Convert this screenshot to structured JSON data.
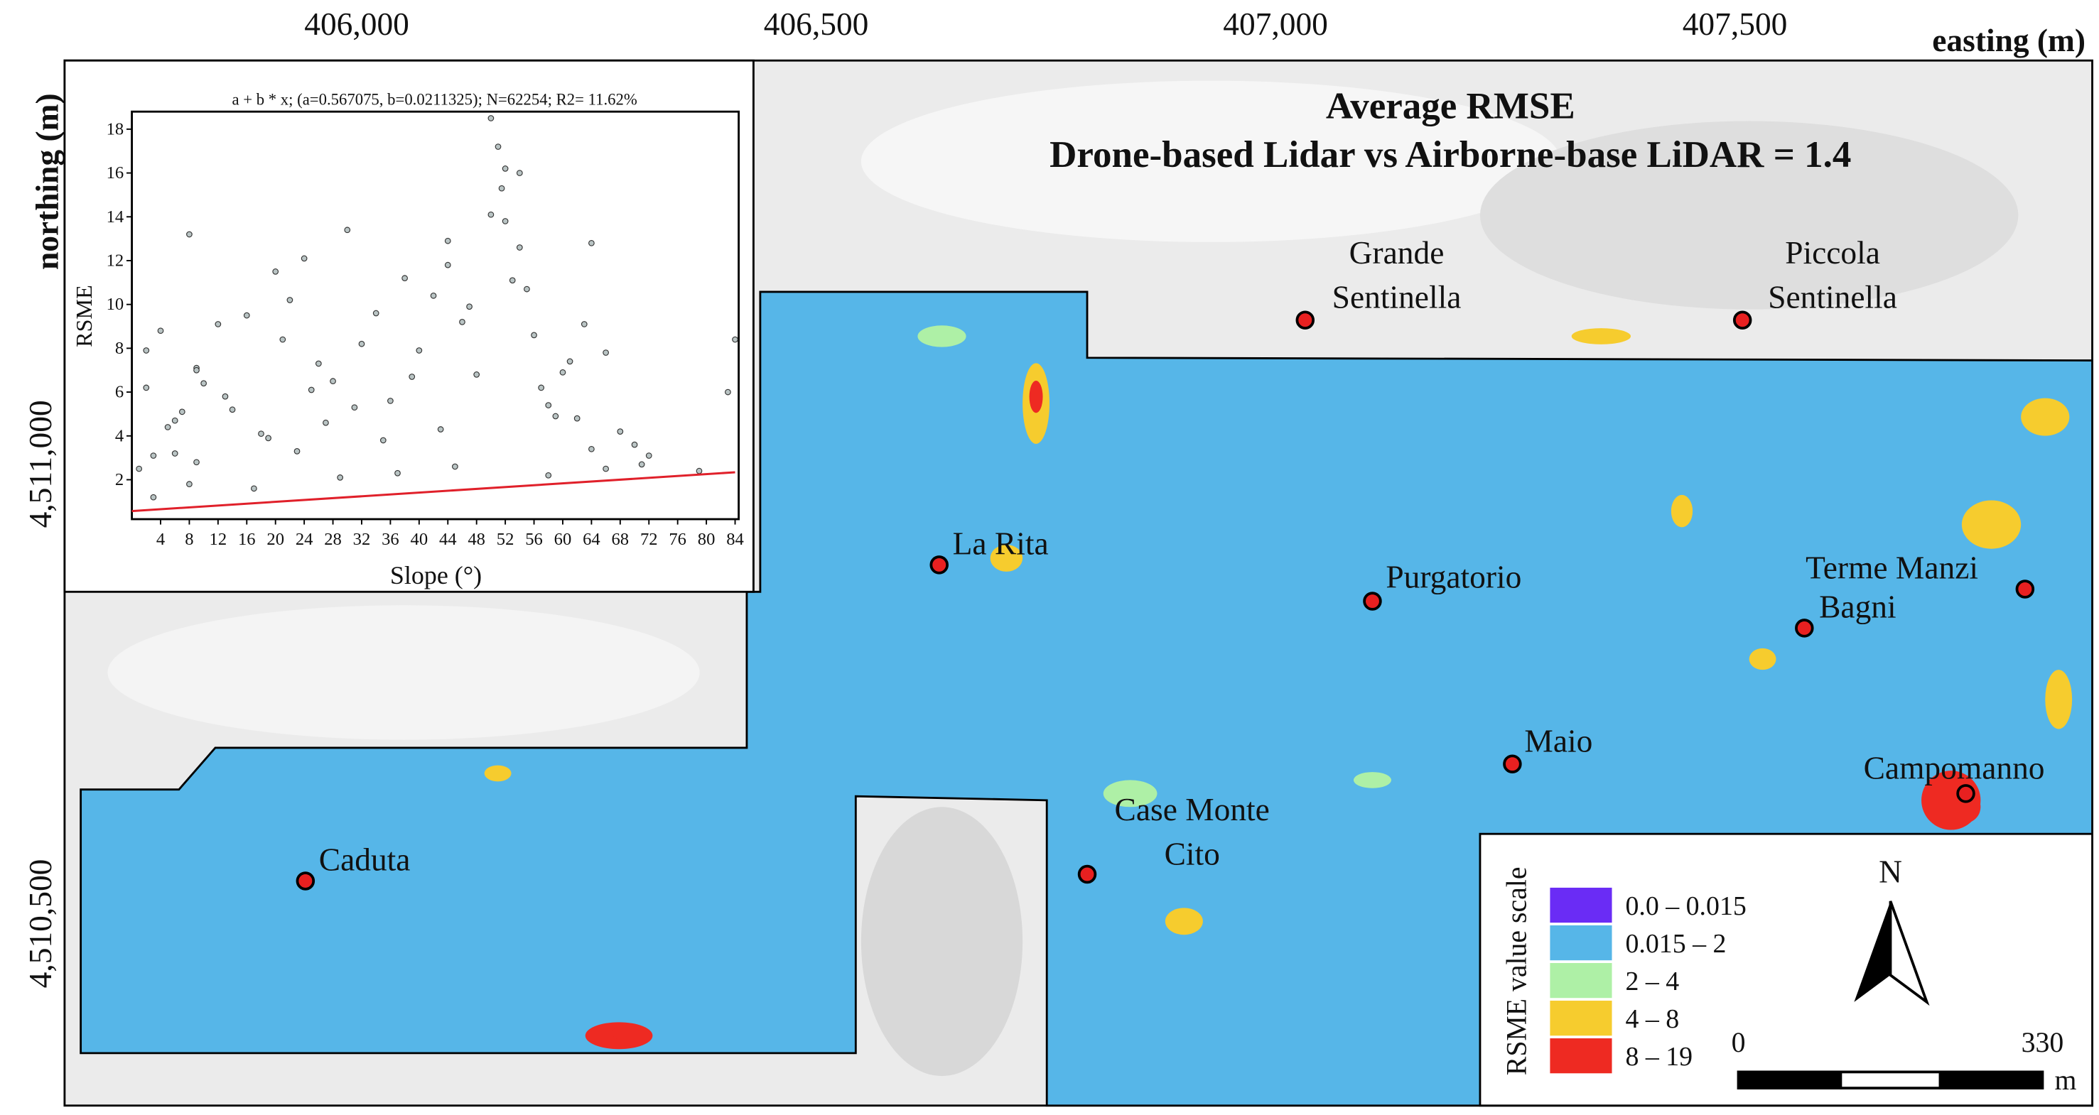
{
  "map": {
    "title": [
      "Average RMSE",
      "Drone-based Lidar vs Airborne-base LiDAR = 1.4"
    ],
    "x_label": "easting (m)",
    "y_label": "northing (m)",
    "xlim": [
      405682,
      407889
    ],
    "ylim": [
      4510302,
      4511439
    ],
    "xticks": [
      {
        "value": 406000,
        "label": "406,000"
      },
      {
        "value": 406500,
        "label": "406,500"
      },
      {
        "value": 407000,
        "label": "407,000"
      },
      {
        "value": 407500,
        "label": "407,500"
      }
    ],
    "yticks": [
      {
        "value": 4511000,
        "label": "4,511,000"
      },
      {
        "value": 4510500,
        "label": "4,510,500"
      }
    ],
    "places": [
      [
        "Grande",
        "Sentinella"
      ],
      [
        "Piccola",
        "Sentinella"
      ],
      [
        "La Rita"
      ],
      [
        "Purgatorio"
      ],
      [
        "Terme Manzi"
      ],
      [
        "Bagni"
      ],
      [
        "Maio"
      ],
      [
        "Campomanno"
      ],
      [
        "Case Monte",
        "Cito"
      ],
      [
        "Caduta"
      ]
    ],
    "legend": {
      "title": "RSME value scale",
      "entries": [
        {
          "label": "0.0 – 0.015",
          "color": "#6a2cf5"
        },
        {
          "label": "0.015 – 2",
          "color": "#56b6e8"
        },
        {
          "label": "2 – 4",
          "color": "#aef0a6"
        },
        {
          "label": "4 – 8",
          "color": "#f6cc2e"
        },
        {
          "label": "8 – 19",
          "color": "#ee2a22"
        }
      ]
    },
    "north": "N",
    "scale_bar": {
      "start": "0",
      "end": "330",
      "unit": "m"
    }
  },
  "chart_data": {
    "type": "scatter",
    "title": "a + b * x; (a=0.567075, b=0.0211325); N=62254; R2= 11.62%",
    "x_label": "Slope (°)",
    "y_label": "RSME",
    "color": "#b9c4c4",
    "fit_color": "#e0202a",
    "xlim": [
      0,
      84.5
    ],
    "ylim": [
      0.2,
      18.8
    ],
    "xticks": [
      4,
      8,
      12,
      16,
      20,
      24,
      28,
      32,
      36,
      40,
      44,
      48,
      52,
      56,
      60,
      64,
      68,
      72,
      76,
      80,
      84
    ],
    "yticks": [
      2,
      4,
      6,
      8,
      10,
      12,
      14,
      16,
      18
    ],
    "x": [
      1,
      2,
      3,
      4,
      5,
      6,
      7,
      8,
      9,
      10,
      12,
      14,
      16,
      18,
      20,
      22,
      24,
      26,
      28,
      30,
      32,
      34,
      36,
      38,
      40,
      42,
      44,
      46,
      48,
      50,
      52,
      54,
      56,
      58,
      60,
      62,
      64,
      66,
      68,
      70,
      72,
      2,
      6,
      9,
      9,
      13,
      19,
      21,
      23,
      25,
      27,
      31,
      35,
      39,
      43,
      44,
      47,
      50,
      51,
      51.5,
      52,
      53,
      54,
      55,
      57,
      59,
      61,
      63,
      64,
      71,
      79,
      83,
      84,
      17,
      29,
      37,
      45,
      58,
      66,
      3,
      8
    ],
    "y": [
      2.5,
      6.2,
      3.1,
      8.8,
      4.4,
      3.2,
      5.1,
      13.2,
      7.1,
      6.4,
      9.1,
      5.2,
      9.5,
      4.1,
      11.5,
      10.2,
      12.1,
      7.3,
      6.5,
      13.4,
      8.2,
      9.6,
      5.6,
      11.2,
      7.9,
      10.4,
      12.9,
      9.2,
      6.8,
      18.5,
      16.2,
      12.6,
      8.6,
      5.4,
      6.9,
      4.8,
      12.8,
      7.8,
      4.2,
      3.6,
      3.1,
      7.9,
      4.7,
      7.0,
      2.8,
      5.8,
      3.9,
      8.4,
      3.3,
      6.1,
      4.6,
      5.3,
      3.8,
      6.7,
      4.3,
      11.8,
      9.9,
      14.1,
      17.2,
      15.3,
      13.8,
      11.1,
      16.0,
      10.7,
      6.2,
      4.9,
      7.4,
      9.1,
      3.4,
      2.7,
      2.4,
      6.0,
      8.4,
      1.6,
      2.1,
      2.3,
      2.6,
      2.2,
      2.5,
      1.2,
      1.8
    ],
    "fit_line": {
      "x": [
        0,
        84
      ],
      "y": [
        0.57,
        2.34
      ]
    }
  }
}
